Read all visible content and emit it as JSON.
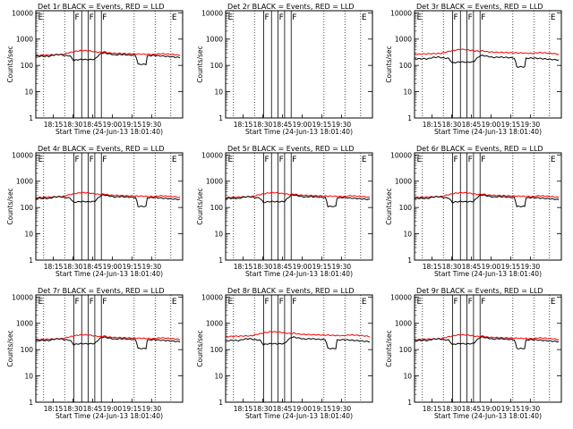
{
  "chart_data": {
    "type": "line",
    "layout": "3x3 grid",
    "title_suffix": " BLACK = Events, RED = LLD",
    "xlabel": "Start Time (24-Jun-13 18:01:40)",
    "ylabel": "Counts/sec",
    "x_ticks": [
      "18:15",
      "18:30",
      "18:45",
      "19:00",
      "19:15",
      "19:30"
    ],
    "x_range_min": [
      0,
      112
    ],
    "y_scale": "log",
    "y_ticks": [
      "1",
      "10",
      "100",
      "1000",
      "10000"
    ],
    "colors": {
      "events": "#000000",
      "lld": "#ff0000"
    },
    "series": [
      {
        "name": "BLACK = Events"
      },
      {
        "name": "RED = LLD"
      }
    ],
    "vertical_markers_min": [
      29,
      35,
      40,
      45,
      50
    ],
    "dotted_markers_min": [
      6,
      22,
      75,
      91,
      103
    ],
    "flag_labels": [
      "E",
      "F",
      "F",
      "F",
      "E"
    ],
    "panels": [
      {
        "det": "Det 1r",
        "has_data": true,
        "events_scale": 1.0,
        "lld_scale": 1.0
      },
      {
        "det": "Det 2r",
        "has_data": false,
        "events_scale": 0,
        "lld_scale": 0
      },
      {
        "det": "Det 3r",
        "has_data": true,
        "events_scale": 0.8,
        "lld_scale": 1.1
      },
      {
        "det": "Det 4r",
        "has_data": true,
        "events_scale": 1.0,
        "lld_scale": 1.0
      },
      {
        "det": "Det 5r",
        "has_data": true,
        "events_scale": 1.0,
        "lld_scale": 1.0
      },
      {
        "det": "Det 6r",
        "has_data": true,
        "events_scale": 1.0,
        "lld_scale": 1.0
      },
      {
        "det": "Det 7r",
        "has_data": true,
        "events_scale": 1.0,
        "lld_scale": 1.0
      },
      {
        "det": "Det 8r",
        "has_data": true,
        "events_scale": 1.0,
        "lld_scale": 1.3
      },
      {
        "det": "Det 9r",
        "has_data": true,
        "events_scale": 1.0,
        "lld_scale": 1.0
      }
    ],
    "events_profile": {
      "t": [
        0,
        6,
        10,
        14,
        18,
        22,
        26,
        29,
        30,
        35,
        40,
        45,
        50,
        52,
        55,
        60,
        65,
        70,
        76,
        78,
        84,
        85,
        90,
        95,
        100,
        105,
        110
      ],
      "values": [
        220,
        225,
        220,
        250,
        260,
        240,
        230,
        150,
        160,
        170,
        165,
        170,
        290,
        300,
        280,
        250,
        260,
        250,
        240,
        110,
        110,
        230,
        240,
        230,
        220,
        210,
        200
      ]
    },
    "lld_profile": {
      "t": [
        0,
        10,
        20,
        25,
        30,
        35,
        40,
        45,
        50,
        52,
        55,
        60,
        70,
        80,
        90,
        95,
        100,
        105,
        110
      ],
      "values": [
        240,
        250,
        260,
        300,
        340,
        370,
        360,
        330,
        310,
        330,
        300,
        290,
        280,
        270,
        260,
        280,
        270,
        260,
        240
      ]
    }
  }
}
